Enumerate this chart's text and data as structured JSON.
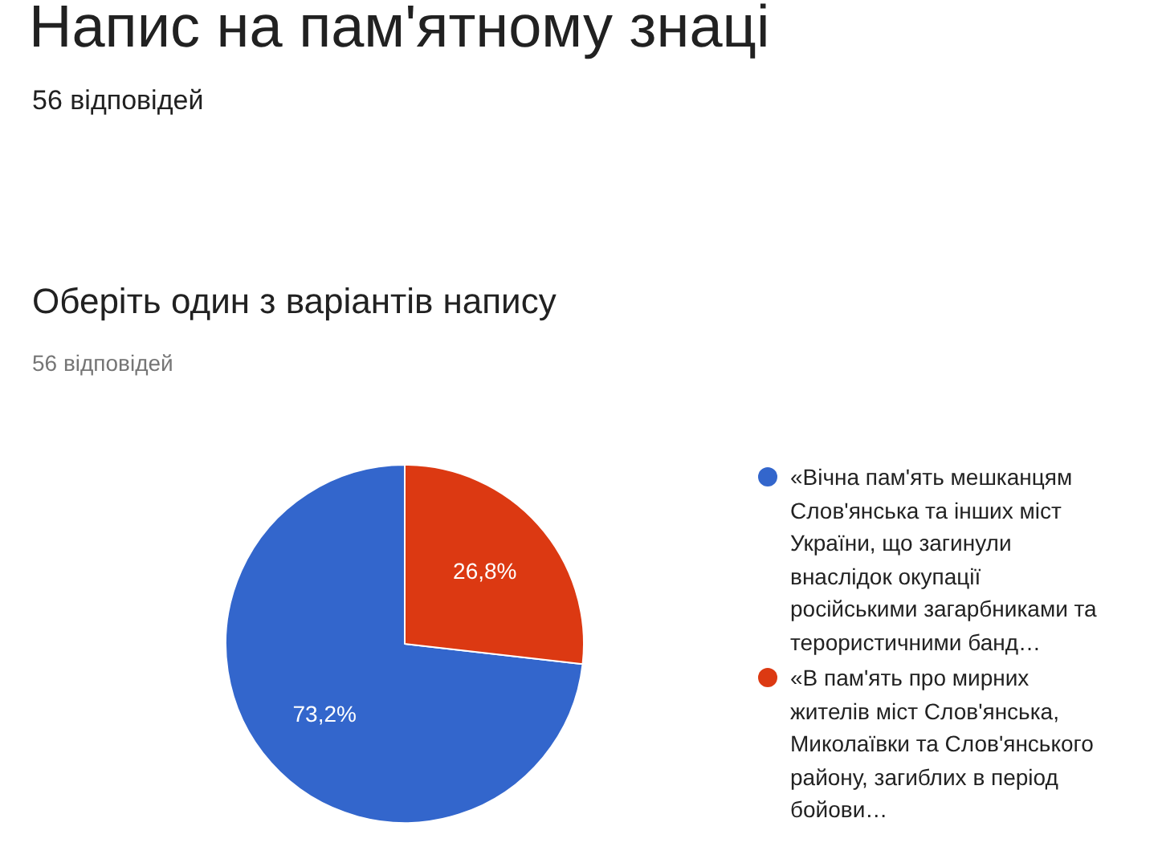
{
  "chart_data": {
    "type": "pie",
    "title": "Оберіть один з варіантів напису",
    "subtitle": "56 відповідей",
    "annotations": [
      "Напис на пам'ятному знаці",
      "56 відповідей"
    ],
    "categories": [
      "«Вічна пам'ять мешканцям Слов'янська та інших міст України, що загинули внаслідок окупації російськими загарбниками та терористичними банд…",
      "«В пам'ять про мирних жителів міст Слов'янська, Миколаївки та Слов'янського району, загиблих в період бойови…"
    ],
    "values": [
      73.2,
      26.8
    ],
    "colors": [
      "#3366cc",
      "#dc3912"
    ],
    "value_labels": [
      "73,2%",
      "26,8%"
    ],
    "legend": "right"
  }
}
